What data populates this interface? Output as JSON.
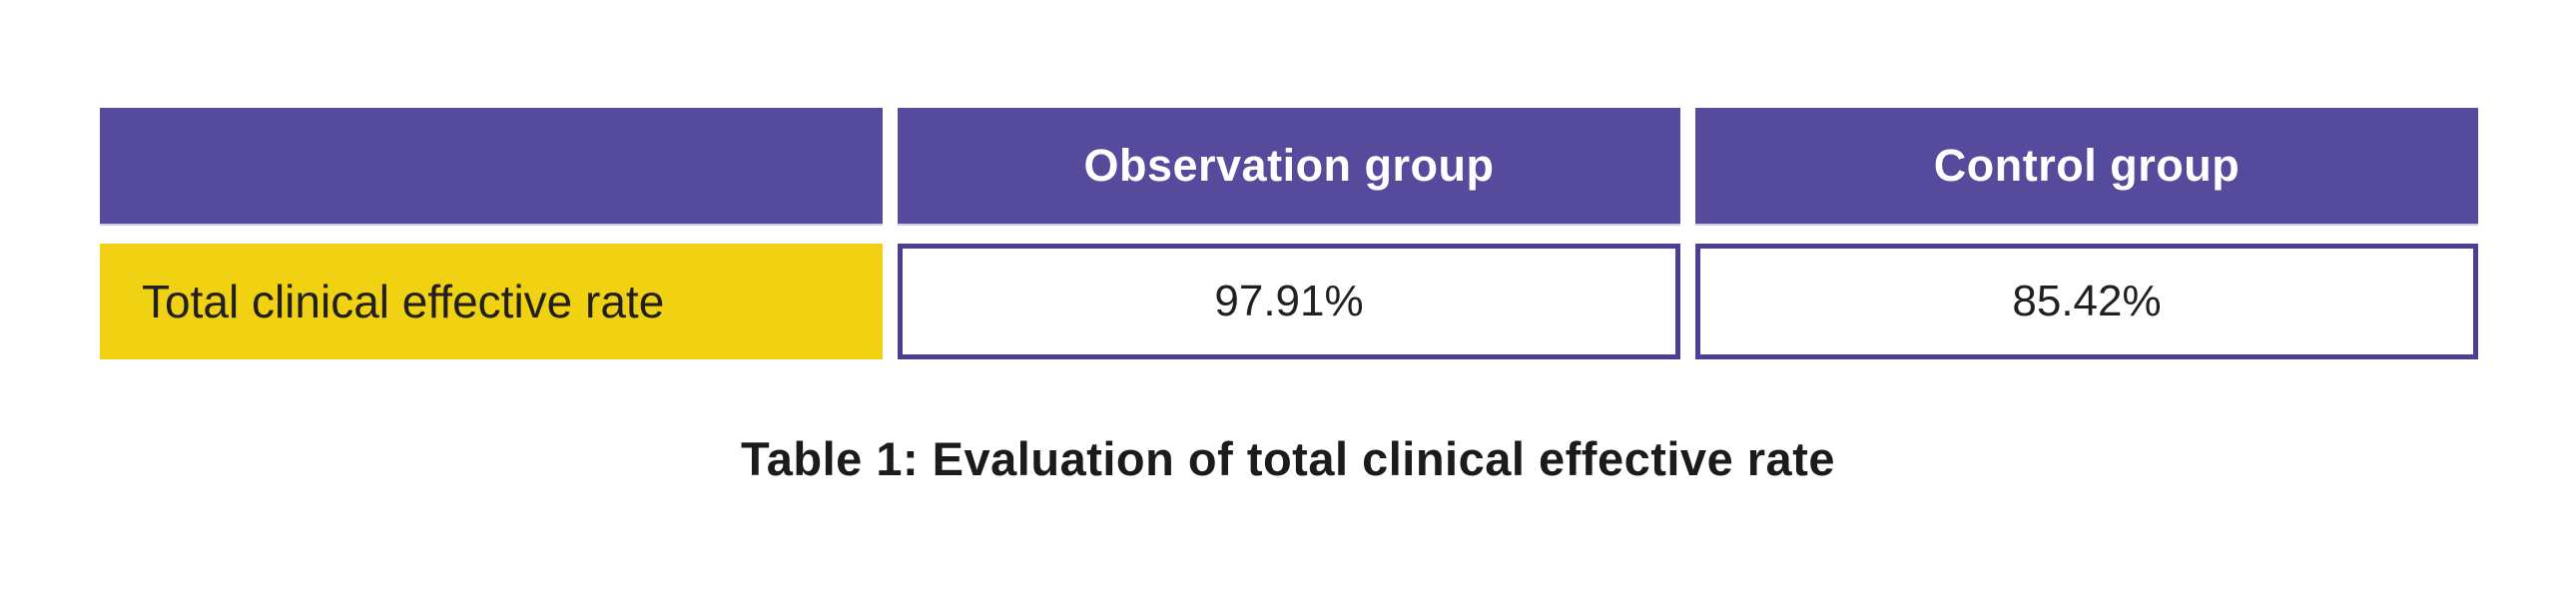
{
  "table": {
    "corner_label": "",
    "column_headers": [
      "Observation group",
      "Control group"
    ],
    "rows": [
      {
        "label": "Total clinical effective rate",
        "observation_value": "97.91%",
        "control_value": "85.42%"
      }
    ]
  },
  "caption": "Table 1: Evaluation of total clinical effective rate",
  "colors": {
    "header_purple": "#564a9c",
    "cell_border_purple": "#4c3f96",
    "label_yellow": "#f0d213",
    "header_text": "#ffffff",
    "body_text": "#221f1f"
  },
  "chart_data": {
    "type": "table",
    "columns": [
      "",
      "Observation group",
      "Control group"
    ],
    "rows": [
      [
        "Total clinical effective rate",
        "97.91%",
        "85.42%"
      ]
    ],
    "values_numeric": {
      "observation_group_pct": 97.91,
      "control_group_pct": 85.42
    },
    "title": "Table 1: Evaluation of total clinical effective rate"
  }
}
